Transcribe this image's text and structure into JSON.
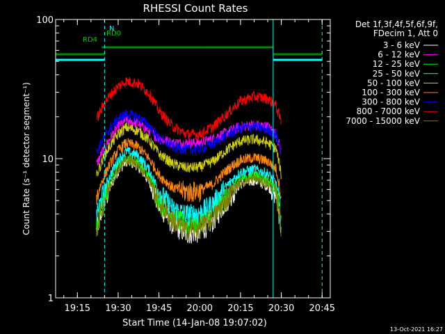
{
  "chart_data": {
    "type": "line",
    "title": "RHESSI Count Rates",
    "xlabel": "Start Time (14-Jan-08 19:07:02)",
    "ylabel": "Count Rate (s⁻¹ detector segment⁻¹)",
    "x_scale": "time",
    "y_scale": "log",
    "xlim": [
      "19:07",
      "20:48"
    ],
    "ylim": [
      1,
      100
    ],
    "x_ticks": [
      "19:15",
      "19:30",
      "19:45",
      "20:00",
      "20:15",
      "20:30",
      "20:45"
    ],
    "y_ticks": [
      "1",
      "10",
      "100"
    ],
    "legend_position": "top-right",
    "legend_header": [
      "Det 1f,3f,4f,5f,6f,9f,",
      "FDecim 1, Att 0"
    ],
    "data_range": [
      "19:22",
      "20:30"
    ],
    "series": [
      {
        "name": "3 - 6 keV",
        "color": "#ffffff",
        "x": [
          "19:22",
          "19:26",
          "19:30",
          "19:33",
          "19:37",
          "19:41",
          "19:45",
          "19:50",
          "19:55",
          "20:00",
          "20:05",
          "20:10",
          "20:15",
          "20:20",
          "20:25",
          "20:28",
          "20:30"
        ],
        "values": [
          3.0,
          5.5,
          8.2,
          9.6,
          9.0,
          7.0,
          4.6,
          3.4,
          2.9,
          3.0,
          3.6,
          5.0,
          6.6,
          7.0,
          6.4,
          5.5,
          3.0
        ]
      },
      {
        "name": "6 - 12 keV",
        "color": "#ff00ff",
        "x": [
          "19:22",
          "19:26",
          "19:30",
          "19:33",
          "19:37",
          "19:41",
          "19:45",
          "19:50",
          "19:55",
          "20:00",
          "20:05",
          "20:10",
          "20:15",
          "20:20",
          "20:25",
          "20:28",
          "20:30"
        ],
        "values": [
          9,
          13,
          17,
          19,
          18,
          16,
          14,
          13,
          13,
          13,
          14,
          15.5,
          17,
          17.5,
          17,
          15,
          11
        ]
      },
      {
        "name": "12 - 25 keV",
        "color": "#00ff00",
        "x": [
          "19:22",
          "19:26",
          "19:30",
          "19:33",
          "19:37",
          "19:41",
          "19:45",
          "19:50",
          "19:55",
          "20:00",
          "20:05",
          "20:10",
          "20:15",
          "20:20",
          "20:25",
          "20:28",
          "20:30"
        ],
        "values": [
          3.3,
          6.0,
          8.8,
          10.2,
          9.6,
          7.6,
          5.0,
          3.8,
          3.4,
          3.5,
          4.1,
          5.6,
          7.2,
          7.6,
          7.0,
          6.0,
          3.2
        ]
      },
      {
        "name": "25 - 50 keV",
        "color": "#00ffff",
        "x": [
          "19:22",
          "19:26",
          "19:30",
          "19:33",
          "19:37",
          "19:41",
          "19:45",
          "19:50",
          "19:55",
          "20:00",
          "20:05",
          "20:10",
          "20:15",
          "20:20",
          "20:25",
          "20:28",
          "20:30"
        ],
        "values": [
          3.8,
          6.8,
          9.8,
          11.3,
          10.6,
          8.5,
          5.8,
          4.4,
          4.0,
          4.1,
          4.8,
          6.4,
          8.0,
          8.4,
          7.8,
          6.7,
          3.7
        ]
      },
      {
        "name": "50 - 100 keV",
        "color": "#d2d200",
        "x": [
          "19:22",
          "19:26",
          "19:30",
          "19:33",
          "19:37",
          "19:41",
          "19:45",
          "19:50",
          "19:55",
          "20:00",
          "20:05",
          "20:10",
          "20:15",
          "20:20",
          "20:25",
          "20:28",
          "20:30"
        ],
        "values": [
          7.5,
          11.5,
          15.0,
          16.8,
          16.0,
          13.8,
          10.8,
          9.2,
          8.6,
          8.7,
          9.6,
          11.6,
          13.4,
          13.8,
          13.0,
          11.8,
          7.5
        ]
      },
      {
        "name": "100 - 300 keV",
        "color": "#ff8800",
        "x": [
          "19:22",
          "19:26",
          "19:30",
          "19:33",
          "19:37",
          "19:41",
          "19:45",
          "19:50",
          "19:55",
          "20:00",
          "20:05",
          "20:10",
          "20:15",
          "20:20",
          "20:25",
          "20:28",
          "20:30"
        ],
        "values": [
          5.2,
          8.4,
          11.5,
          13.0,
          12.3,
          10.2,
          7.6,
          6.2,
          5.8,
          5.9,
          6.6,
          8.3,
          9.8,
          10.2,
          9.6,
          8.5,
          5.2
        ]
      },
      {
        "name": "300 - 800 keV",
        "color": "#0000ff",
        "x": [
          "19:22",
          "19:26",
          "19:30",
          "19:33",
          "19:37",
          "19:41",
          "19:45",
          "19:50",
          "19:55",
          "20:00",
          "20:05",
          "20:10",
          "20:15",
          "20:20",
          "20:25",
          "20:28",
          "20:30"
        ],
        "values": [
          11,
          15.5,
          19.5,
          21,
          20,
          17.5,
          14,
          12.2,
          11.6,
          11.7,
          12.8,
          14.8,
          16.6,
          17.0,
          16.2,
          14.8,
          11
        ]
      },
      {
        "name": "800 - 7000 keV",
        "color": "#ff0000",
        "x": [
          "19:22",
          "19:26",
          "19:30",
          "19:33",
          "19:37",
          "19:41",
          "19:45",
          "19:50",
          "19:55",
          "20:00",
          "20:05",
          "20:10",
          "20:15",
          "20:20",
          "20:25",
          "20:28",
          "20:30"
        ],
        "values": [
          19,
          27,
          33,
          36,
          35,
          30,
          22,
          17,
          15,
          15,
          17,
          21,
          26,
          28,
          27,
          24,
          18
        ]
      },
      {
        "name": "7000 - 15000 keV",
        "color": "#808000",
        "x": [
          "19:22",
          "19:26",
          "19:30",
          "19:33",
          "19:37",
          "19:41",
          "19:45",
          "19:50",
          "19:55",
          "20:00",
          "20:05",
          "20:10",
          "20:15",
          "20:20",
          "20:25",
          "20:28",
          "20:30"
        ],
        "values": [
          3.1,
          5.7,
          8.4,
          9.8,
          9.2,
          7.2,
          4.8,
          3.6,
          3.1,
          3.2,
          3.8,
          5.2,
          6.8,
          7.2,
          6.6,
          5.7,
          3.1
        ]
      }
    ],
    "flag_bars": [
      {
        "label": "N",
        "color": "#00ffff",
        "y": 86,
        "segments": [
          [
            "19:07",
            "19:25"
          ],
          [
            "20:27",
            "20:45"
          ]
        ]
      },
      {
        "label": "RD0",
        "color": "#008800",
        "y": 78,
        "segments": [
          [
            "19:07",
            "19:25"
          ],
          [
            "20:27",
            "20:45"
          ]
        ]
      },
      {
        "label": "RD4",
        "color": "#008800",
        "y": 68,
        "segments": [
          [
            "19:24",
            "19:40"
          ],
          [
            "19:40",
            "20:01"
          ],
          [
            "20:01",
            "20:27"
          ]
        ]
      }
    ],
    "vlines": [
      {
        "time": "19:07",
        "color": "#00ffff",
        "style": "solid"
      },
      {
        "time": "19:25",
        "color": "#00ffff",
        "style": "dashed"
      },
      {
        "time": "20:27",
        "color": "#00ffff",
        "style": "solid"
      },
      {
        "time": "20:45",
        "color": "#00ffff",
        "style": "dashed"
      }
    ]
  },
  "footer": {
    "timestamp": "13-Oct-2021 16:27"
  }
}
